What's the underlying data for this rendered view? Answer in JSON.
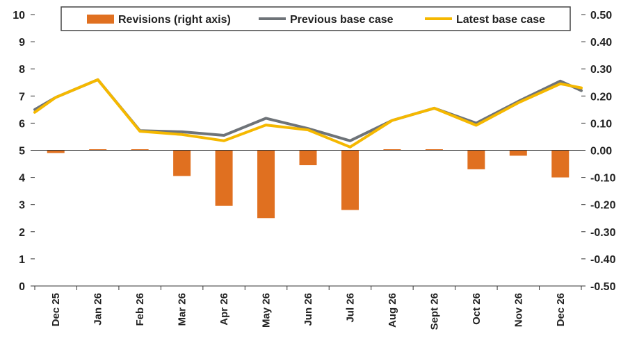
{
  "chart_data": {
    "type": "bar+line",
    "categories": [
      "Dec 25",
      "Jan 26",
      "Feb 26",
      "Mar 26",
      "Apr 26",
      "May 26",
      "Jun 26",
      "Jul 26",
      "Aug 26",
      "Sept 26",
      "Oct 26",
      "Nov 26",
      "Dec 26"
    ],
    "series": [
      {
        "name": "Revisions (right axis)",
        "type": "bar",
        "axis": "right",
        "color": "#E07020",
        "values": [
          -0.01,
          0.0,
          0.0,
          -0.095,
          -0.205,
          -0.25,
          -0.055,
          -0.22,
          0.0,
          0.0,
          -0.07,
          -0.02,
          -0.1
        ]
      },
      {
        "name": "Previous base case",
        "type": "line",
        "axis": "left",
        "color": "#6E7378",
        "values": [
          6.95,
          7.6,
          5.72,
          5.68,
          5.55,
          6.18,
          5.8,
          5.35,
          6.1,
          6.55,
          6.0,
          6.8,
          7.55
        ],
        "edge_start": 6.5,
        "edge_end": 7.2
      },
      {
        "name": "Latest base case",
        "type": "line",
        "axis": "left",
        "color": "#F5B800",
        "values": [
          6.95,
          7.6,
          5.7,
          5.58,
          5.35,
          5.93,
          5.75,
          5.12,
          6.1,
          6.55,
          5.92,
          6.75,
          7.45
        ],
        "edge_start": 6.4,
        "edge_end": 7.3
      }
    ],
    "y_left": {
      "ylim": [
        0,
        10
      ],
      "ticks": [
        "0",
        "1",
        "2",
        "3",
        "4",
        "5",
        "6",
        "7",
        "8",
        "9",
        "10"
      ]
    },
    "y_right": {
      "ylim": [
        -0.5,
        0.5
      ],
      "ticks": [
        "-0.50",
        "-0.40",
        "-0.30",
        "-0.20",
        "-0.10",
        "0.00",
        "0.10",
        "0.20",
        "0.30",
        "0.40",
        "0.50"
      ]
    },
    "legend": {
      "placement": "top-center",
      "labels": [
        "Revisions (right axis)",
        "Previous base case",
        "Latest base case"
      ]
    },
    "grid": false,
    "title": "",
    "xlabel": "",
    "ylabel": ""
  }
}
